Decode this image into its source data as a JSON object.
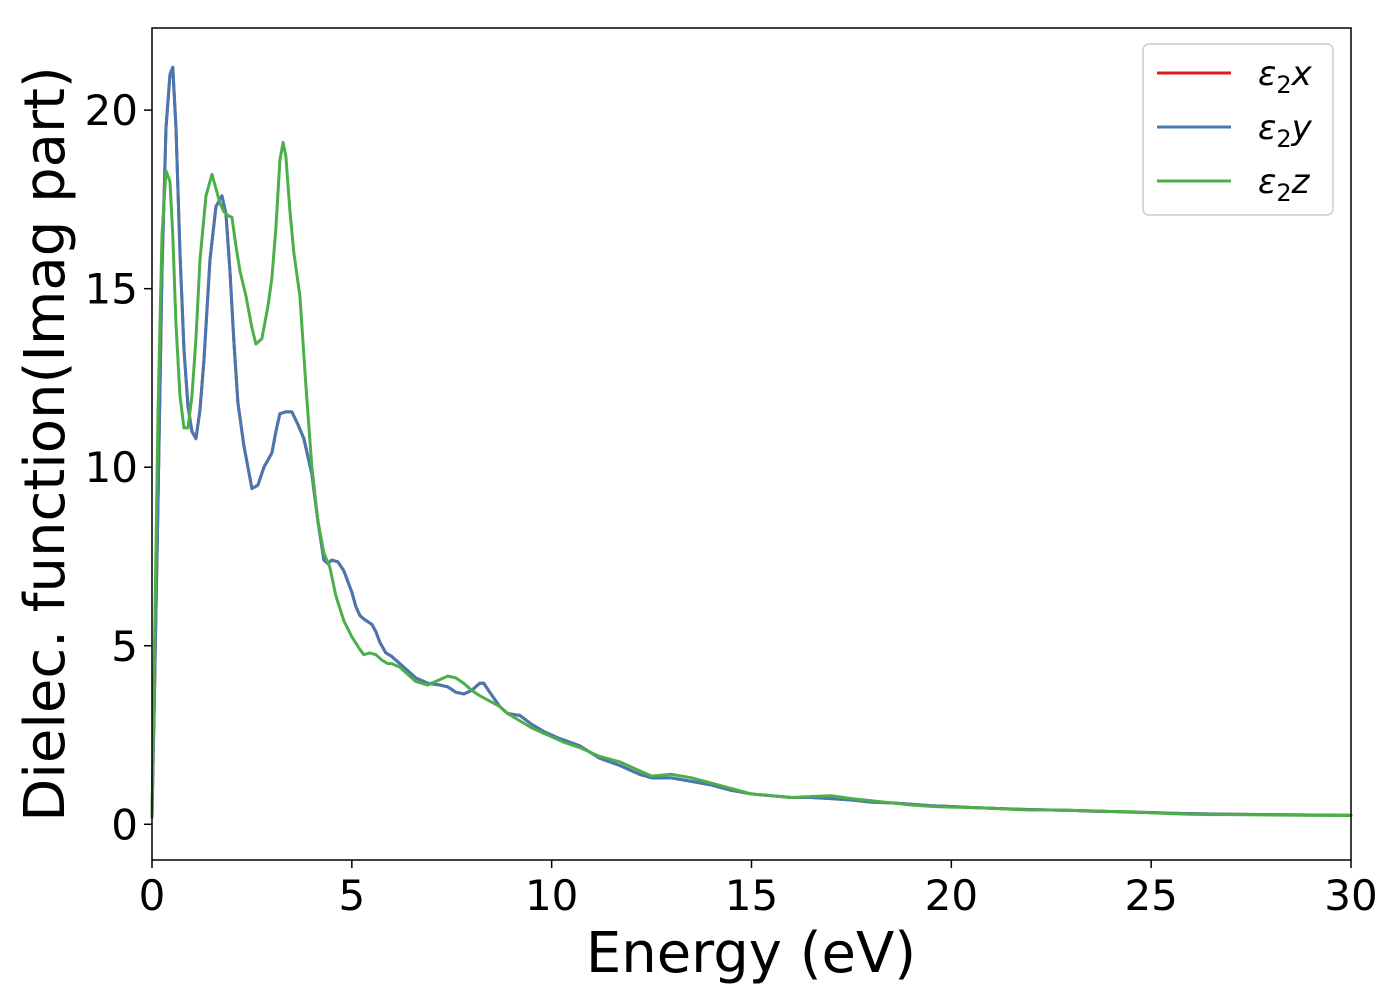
{
  "chart_data": {
    "type": "line",
    "xlabel": "Energy (eV)",
    "ylabel": "Dielec. function(Imag part)",
    "xlim": [
      0,
      30
    ],
    "ylim": [
      -1,
      22.3
    ],
    "xticks": [
      0,
      5,
      10,
      15,
      20,
      25,
      30
    ],
    "yticks": [
      0,
      5,
      10,
      15,
      20
    ],
    "grid": false,
    "legend_position": "top-right",
    "series": [
      {
        "name": "ε₂x",
        "legend_base": "ε",
        "legend_sub": "2",
        "legend_suffix": "x",
        "color": "#e41a1c",
        "x": [
          0.0,
          0.05,
          0.15,
          0.25,
          0.35,
          0.45,
          0.52,
          0.6,
          0.7,
          0.8,
          0.9,
          1.0,
          1.1,
          1.2,
          1.3,
          1.45,
          1.6,
          1.75,
          1.85,
          1.95,
          2.05,
          2.15,
          2.3,
          2.5,
          2.65,
          2.8,
          3.0,
          3.1,
          3.2,
          3.35,
          3.5,
          3.65,
          3.8,
          4.0,
          4.15,
          4.3,
          4.4,
          4.5,
          4.65,
          4.8,
          4.9,
          5.0,
          5.1,
          5.2,
          5.3,
          5.5,
          5.6,
          5.7,
          5.85,
          6.0,
          6.2,
          6.4,
          6.6,
          6.9,
          7.2,
          7.4,
          7.6,
          7.8,
          8.0,
          8.2,
          8.3,
          8.45,
          8.7,
          8.9,
          9.2,
          9.5,
          9.8,
          10.2,
          10.7,
          11.2,
          11.7,
          12.2,
          12.5,
          13.0,
          13.5,
          14.0,
          14.5,
          15.0,
          15.5,
          16.0,
          16.5,
          17.0,
          17.5,
          18.0,
          18.5,
          19.0,
          19.5,
          20.0,
          20.5,
          21.0,
          21.5,
          22.0,
          22.5,
          23.0,
          23.5,
          24.0,
          24.5,
          25.0,
          25.5,
          26.0,
          26.5,
          27.0,
          28.0,
          29.0,
          30.0
        ],
        "y": [
          0.2,
          3.0,
          9.0,
          15.5,
          19.5,
          21.0,
          21.2,
          19.5,
          16.0,
          13.3,
          11.7,
          11.0,
          10.8,
          11.6,
          13.0,
          15.8,
          17.3,
          17.6,
          17.1,
          15.5,
          13.5,
          11.8,
          10.6,
          9.4,
          9.5,
          10.0,
          10.4,
          11.0,
          11.5,
          11.55,
          11.55,
          11.2,
          10.8,
          9.8,
          8.5,
          7.4,
          7.3,
          7.4,
          7.35,
          7.1,
          6.8,
          6.5,
          6.1,
          5.85,
          5.75,
          5.6,
          5.4,
          5.1,
          4.8,
          4.7,
          4.5,
          4.3,
          4.1,
          3.95,
          3.9,
          3.85,
          3.7,
          3.65,
          3.75,
          3.95,
          3.95,
          3.7,
          3.3,
          3.1,
          3.05,
          2.8,
          2.6,
          2.4,
          2.2,
          1.85,
          1.65,
          1.4,
          1.3,
          1.3,
          1.2,
          1.1,
          0.95,
          0.85,
          0.8,
          0.75,
          0.75,
          0.72,
          0.68,
          0.62,
          0.6,
          0.56,
          0.52,
          0.5,
          0.47,
          0.45,
          0.43,
          0.41,
          0.4,
          0.39,
          0.37,
          0.36,
          0.34,
          0.33,
          0.31,
          0.3,
          0.29,
          0.28,
          0.27,
          0.26,
          0.25
        ]
      },
      {
        "name": "ε₂y",
        "legend_base": "ε",
        "legend_sub": "2",
        "legend_suffix": "y",
        "color": "#4778b0",
        "x": [
          0.0,
          0.05,
          0.15,
          0.25,
          0.35,
          0.45,
          0.52,
          0.6,
          0.7,
          0.8,
          0.9,
          1.0,
          1.1,
          1.2,
          1.3,
          1.45,
          1.6,
          1.75,
          1.85,
          1.95,
          2.05,
          2.15,
          2.3,
          2.5,
          2.65,
          2.8,
          3.0,
          3.1,
          3.2,
          3.35,
          3.5,
          3.65,
          3.8,
          4.0,
          4.15,
          4.3,
          4.4,
          4.5,
          4.65,
          4.8,
          4.9,
          5.0,
          5.1,
          5.2,
          5.3,
          5.5,
          5.6,
          5.7,
          5.85,
          6.0,
          6.2,
          6.4,
          6.6,
          6.9,
          7.2,
          7.4,
          7.6,
          7.8,
          8.0,
          8.2,
          8.3,
          8.45,
          8.7,
          8.9,
          9.2,
          9.5,
          9.8,
          10.2,
          10.7,
          11.2,
          11.7,
          12.2,
          12.5,
          13.0,
          13.5,
          14.0,
          14.5,
          15.0,
          15.5,
          16.0,
          16.5,
          17.0,
          17.5,
          18.0,
          18.5,
          19.0,
          19.5,
          20.0,
          20.5,
          21.0,
          21.5,
          22.0,
          22.5,
          23.0,
          23.5,
          24.0,
          24.5,
          25.0,
          25.5,
          26.0,
          26.5,
          27.0,
          28.0,
          29.0,
          30.0
        ],
        "y": [
          0.2,
          3.0,
          9.0,
          15.5,
          19.5,
          21.0,
          21.2,
          19.5,
          16.0,
          13.3,
          11.7,
          11.0,
          10.8,
          11.6,
          13.0,
          15.8,
          17.3,
          17.6,
          17.1,
          15.5,
          13.5,
          11.8,
          10.6,
          9.4,
          9.5,
          10.0,
          10.4,
          11.0,
          11.5,
          11.55,
          11.55,
          11.2,
          10.8,
          9.8,
          8.5,
          7.4,
          7.3,
          7.4,
          7.35,
          7.1,
          6.8,
          6.5,
          6.1,
          5.85,
          5.75,
          5.6,
          5.4,
          5.1,
          4.8,
          4.7,
          4.5,
          4.3,
          4.1,
          3.95,
          3.9,
          3.85,
          3.7,
          3.65,
          3.75,
          3.95,
          3.95,
          3.7,
          3.3,
          3.1,
          3.05,
          2.8,
          2.6,
          2.4,
          2.2,
          1.85,
          1.65,
          1.4,
          1.3,
          1.3,
          1.2,
          1.1,
          0.95,
          0.85,
          0.8,
          0.75,
          0.75,
          0.72,
          0.68,
          0.62,
          0.6,
          0.56,
          0.52,
          0.5,
          0.47,
          0.45,
          0.43,
          0.41,
          0.4,
          0.39,
          0.37,
          0.36,
          0.34,
          0.33,
          0.31,
          0.3,
          0.29,
          0.28,
          0.27,
          0.26,
          0.25
        ]
      },
      {
        "name": "ε₂z",
        "legend_base": "ε",
        "legend_sub": "2",
        "legend_suffix": "z",
        "color": "#4daf4a",
        "x": [
          0.0,
          0.05,
          0.15,
          0.25,
          0.35,
          0.45,
          0.52,
          0.6,
          0.7,
          0.8,
          0.9,
          1.0,
          1.1,
          1.2,
          1.35,
          1.5,
          1.6,
          1.7,
          1.8,
          1.9,
          2.0,
          2.1,
          2.2,
          2.35,
          2.5,
          2.6,
          2.75,
          2.9,
          3.0,
          3.1,
          3.2,
          3.28,
          3.35,
          3.45,
          3.55,
          3.7,
          3.85,
          4.0,
          4.15,
          4.3,
          4.45,
          4.6,
          4.8,
          5.0,
          5.2,
          5.3,
          5.45,
          5.6,
          5.75,
          5.9,
          6.0,
          6.2,
          6.4,
          6.6,
          6.9,
          7.2,
          7.4,
          7.6,
          7.8,
          8.0,
          8.2,
          8.45,
          8.7,
          8.9,
          9.2,
          9.5,
          9.8,
          10.0,
          10.3,
          10.7,
          11.2,
          11.7,
          12.2,
          12.5,
          13.0,
          13.5,
          14.0,
          14.5,
          15.0,
          15.5,
          16.0,
          16.5,
          17.0,
          17.5,
          18.0,
          18.5,
          19.0,
          19.5,
          20.0,
          20.5,
          21.0,
          21.5,
          22.0,
          22.5,
          23.0,
          23.5,
          24.0,
          24.5,
          25.0,
          25.5,
          26.0,
          26.5,
          27.0,
          28.0,
          29.0,
          30.0
        ],
        "y": [
          0.2,
          4.0,
          11.5,
          16.5,
          18.3,
          18.0,
          16.5,
          14.0,
          12.0,
          11.1,
          11.1,
          12.0,
          13.6,
          15.8,
          17.6,
          18.2,
          17.8,
          17.4,
          17.15,
          17.05,
          17.0,
          16.2,
          15.5,
          14.8,
          13.9,
          13.45,
          13.6,
          14.5,
          15.3,
          16.7,
          18.6,
          19.1,
          18.7,
          17.2,
          16.0,
          14.8,
          12.3,
          10.0,
          8.5,
          7.6,
          7.2,
          6.4,
          5.7,
          5.25,
          4.9,
          4.75,
          4.8,
          4.75,
          4.6,
          4.5,
          4.5,
          4.4,
          4.2,
          4.0,
          3.9,
          4.05,
          4.15,
          4.1,
          3.95,
          3.75,
          3.6,
          3.45,
          3.3,
          3.1,
          2.9,
          2.7,
          2.55,
          2.45,
          2.3,
          2.15,
          1.9,
          1.75,
          1.5,
          1.35,
          1.4,
          1.3,
          1.15,
          1.0,
          0.85,
          0.8,
          0.75,
          0.78,
          0.8,
          0.72,
          0.66,
          0.6,
          0.54,
          0.5,
          0.48,
          0.47,
          0.45,
          0.42,
          0.4,
          0.4,
          0.39,
          0.38,
          0.36,
          0.35,
          0.32,
          0.3,
          0.28,
          0.27,
          0.27,
          0.26,
          0.25,
          0.25
        ]
      }
    ]
  }
}
